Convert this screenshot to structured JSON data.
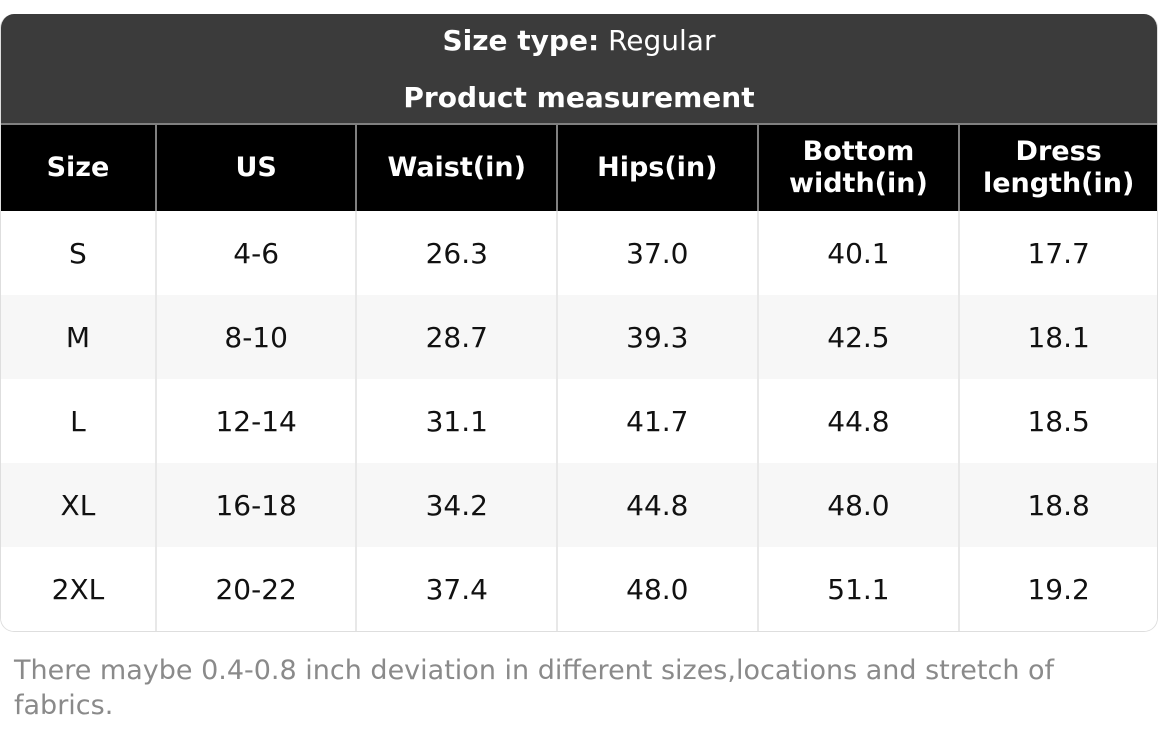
{
  "header": {
    "size_type_label": "Size type:",
    "size_type_value": "Regular",
    "subtitle": "Product measurement"
  },
  "table": {
    "columns": [
      "Size",
      "US",
      "Waist(in)",
      "Hips(in)",
      "Bottom width(in)",
      "Dress length(in)"
    ],
    "rows": [
      [
        "S",
        "4-6",
        "26.3",
        "37.0",
        "40.1",
        "17.7"
      ],
      [
        "M",
        "8-10",
        "28.7",
        "39.3",
        "42.5",
        "18.1"
      ],
      [
        "L",
        "12-14",
        "31.1",
        "41.7",
        "44.8",
        "18.5"
      ],
      [
        "XL",
        "16-18",
        "34.2",
        "44.8",
        "48.0",
        "18.8"
      ],
      [
        "2XL",
        "20-22",
        "37.4",
        "48.0",
        "51.1",
        "19.2"
      ]
    ]
  },
  "footer": {
    "note": "There maybe 0.4-0.8 inch deviation in different sizes,locations and stretch of fabrics."
  },
  "colors": {
    "band_bg": "#3b3b3b",
    "header_bg": "#000000",
    "row_alt_bg": "#f7f7f7",
    "note_color": "#8a8a8a",
    "header_divider": "#808080",
    "body_divider": "#e8e8e8",
    "card_border": "#dedede"
  }
}
